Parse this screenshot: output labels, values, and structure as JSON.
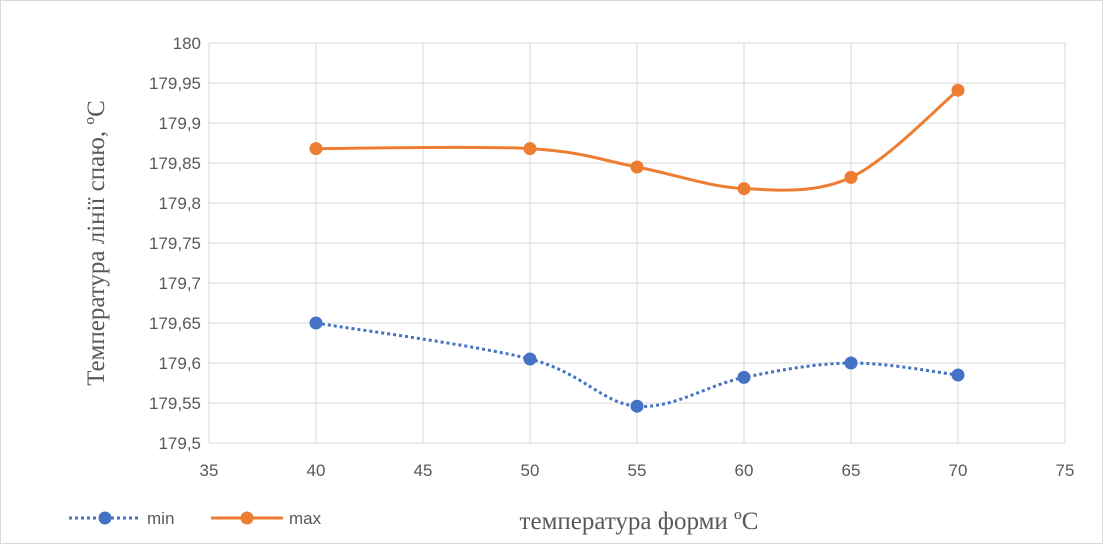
{
  "chart_data": {
    "type": "scatter",
    "title": "",
    "xlabel": "температура форми ºС",
    "ylabel": "Температура лінії спаю, ºС",
    "xlim": [
      35,
      75
    ],
    "ylim": [
      179.5,
      180
    ],
    "x_ticks": [
      35,
      40,
      45,
      50,
      55,
      60,
      65,
      70,
      75
    ],
    "y_ticks": [
      179.5,
      179.55,
      179.6,
      179.65,
      179.7,
      179.75,
      179.8,
      179.85,
      179.9,
      179.95,
      180
    ],
    "decimal_separator": ",",
    "grid": true,
    "legend_position": "bottom-left",
    "x": [
      40,
      50,
      55,
      60,
      65,
      70
    ],
    "series": [
      {
        "name": "min",
        "color": "#4472C4",
        "line_style": "dotted",
        "smooth": true,
        "values": [
          179.65,
          179.605,
          179.546,
          179.582,
          179.6,
          179.585
        ]
      },
      {
        "name": "max",
        "color": "#ED7D31",
        "line_style": "solid",
        "smooth": true,
        "values": [
          179.868,
          179.868,
          179.845,
          179.818,
          179.832,
          179.941
        ]
      }
    ]
  }
}
